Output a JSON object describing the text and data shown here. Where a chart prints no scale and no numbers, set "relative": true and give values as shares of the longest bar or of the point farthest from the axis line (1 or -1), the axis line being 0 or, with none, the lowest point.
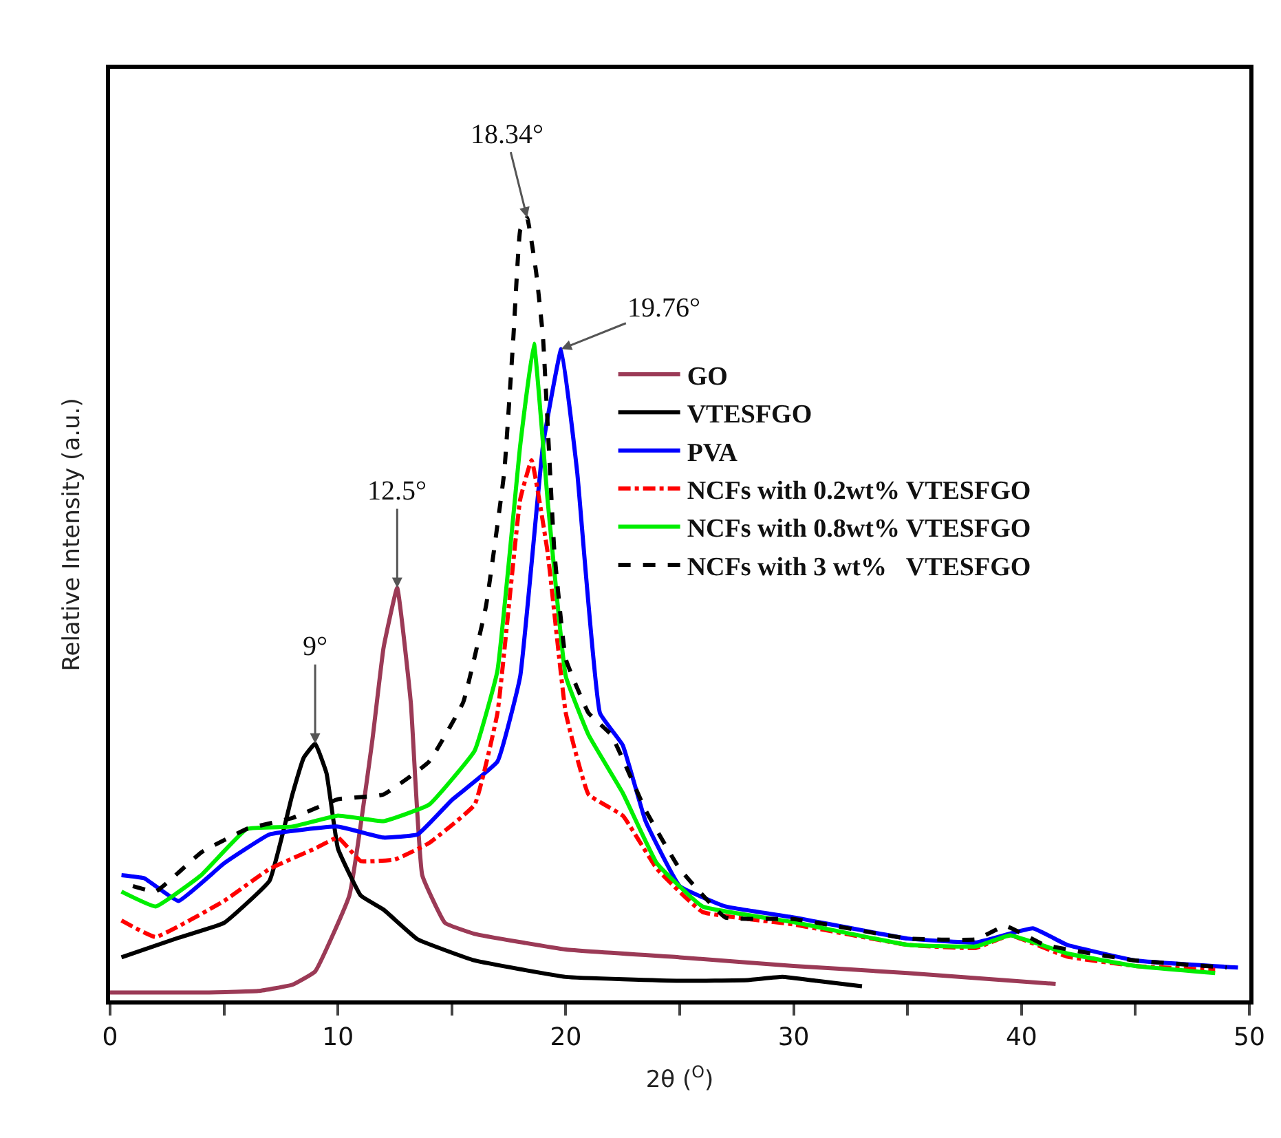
{
  "chart_data": {
    "type": "line",
    "relative": true,
    "xlabel": "2θ ($^{O}$)",
    "ylabel": "Relative Intensity (a.u.)",
    "xlim": [
      0,
      50
    ],
    "xticks": [
      0,
      {
        "value": 5,
        "label": null
      },
      10,
      {
        "value": 15,
        "label": null
      },
      20,
      {
        "value": 25,
        "label": null
      },
      30,
      {
        "value": 35,
        "label": null
      },
      40,
      {
        "value": 45,
        "label": null
      },
      50
    ],
    "legend": "right",
    "marker": "none",
    "annotations": [
      {
        "text": "9°",
        "x": 9,
        "y": 0.328
      },
      {
        "text": "12.5°",
        "x": 12.6,
        "y": 0.527
      },
      {
        "text": "18.34°",
        "x": 18.3,
        "y": 1.0
      },
      {
        "text": "19.76°",
        "x": 19.8,
        "y": 0.832
      }
    ],
    "series": [
      {
        "name": "GO",
        "color": "#9b3a56",
        "line_style": "solid",
        "x": [
          0,
          4,
          6.5,
          8,
          9,
          10.5,
          11.5,
          12,
          12.6,
          13.2,
          13.7,
          14.7,
          16,
          20,
          25,
          30,
          35,
          41.5
        ],
        "values": [
          0.01,
          0.01,
          0.012,
          0.02,
          0.037,
          0.134,
          0.33,
          0.45,
          0.527,
          0.38,
          0.16,
          0.099,
          0.085,
          0.065,
          0.055,
          0.044,
          0.035,
          0.021
        ]
      },
      {
        "name": "VTESFGO",
        "color": "#000000",
        "line_style": "solid",
        "x": [
          0.5,
          3,
          5,
          7,
          8,
          8.5,
          9,
          9.5,
          10,
          11,
          12,
          13.5,
          16,
          20,
          25,
          28,
          29.5,
          31,
          33
        ],
        "values": [
          0.055,
          0.08,
          0.099,
          0.153,
          0.263,
          0.31,
          0.328,
          0.29,
          0.194,
          0.134,
          0.116,
          0.078,
          0.051,
          0.03,
          0.025,
          0.026,
          0.03,
          0.025,
          0.018
        ]
      },
      {
        "name": "PVA",
        "color": "#0000ff",
        "line_style": "solid",
        "x": [
          0.5,
          1.5,
          3,
          5,
          7,
          10,
          12,
          13.5,
          15,
          17,
          18,
          19,
          19.8,
          20.5,
          21.5,
          22.5,
          23.5,
          25,
          27,
          30,
          35,
          38,
          40.5,
          42,
          45,
          49.5
        ],
        "values": [
          0.16,
          0.156,
          0.127,
          0.175,
          0.212,
          0.222,
          0.208,
          0.212,
          0.256,
          0.305,
          0.414,
          0.709,
          0.832,
          0.675,
          0.367,
          0.326,
          0.229,
          0.146,
          0.12,
          0.106,
          0.079,
          0.074,
          0.092,
          0.071,
          0.051,
          0.042
        ]
      },
      {
        "name": "NCFs with 0.2wt% VTESFGO",
        "color": "#ff0000",
        "line_style": "dotted",
        "x": [
          0.5,
          2,
          5,
          7,
          9,
          10,
          11,
          12.5,
          14,
          16,
          17,
          18,
          18.5,
          19.2,
          20,
          21,
          22.5,
          24,
          26,
          30,
          35,
          38,
          39.5,
          42,
          45,
          48.5
        ],
        "values": [
          0.102,
          0.081,
          0.127,
          0.168,
          0.194,
          0.208,
          0.178,
          0.18,
          0.201,
          0.25,
          0.367,
          0.64,
          0.69,
          0.573,
          0.367,
          0.263,
          0.236,
          0.168,
          0.113,
          0.097,
          0.071,
          0.067,
          0.083,
          0.056,
          0.044,
          0.039
        ]
      },
      {
        "name": "NCFs with 0.8wt% VTESFGO",
        "color": "#00ee00",
        "line_style": "solid",
        "x": [
          0.5,
          2,
          4,
          6,
          8,
          10,
          12,
          14,
          16,
          17,
          18,
          18.6,
          19.2,
          20,
          21,
          22.5,
          24,
          26,
          30,
          35,
          38,
          39.5,
          42,
          45,
          48.5
        ],
        "values": [
          0.139,
          0.12,
          0.16,
          0.219,
          0.222,
          0.236,
          0.229,
          0.25,
          0.319,
          0.421,
          0.709,
          0.839,
          0.64,
          0.414,
          0.339,
          0.265,
          0.175,
          0.12,
          0.1,
          0.071,
          0.069,
          0.083,
          0.06,
          0.044,
          0.035
        ]
      },
      {
        "name": "NCFs with 3 wt%   VTESFGO",
        "color": "#000000",
        "line_style": "dashed",
        "x": [
          1,
          2,
          4,
          6,
          8,
          10,
          12,
          14,
          15.5,
          16.5,
          17.3,
          17.7,
          18,
          18.3,
          18.7,
          19,
          19.5,
          20,
          21,
          22,
          23.5,
          25,
          27,
          30,
          35,
          38,
          39.3,
          41,
          45,
          49
        ],
        "values": [
          0.146,
          0.139,
          0.189,
          0.219,
          0.233,
          0.257,
          0.263,
          0.305,
          0.381,
          0.504,
          0.675,
          0.847,
          0.984,
          1.0,
          0.93,
          0.847,
          0.573,
          0.436,
          0.367,
          0.339,
          0.243,
          0.168,
          0.106,
          0.104,
          0.079,
          0.078,
          0.095,
          0.071,
          0.051,
          0.042
        ]
      }
    ]
  }
}
